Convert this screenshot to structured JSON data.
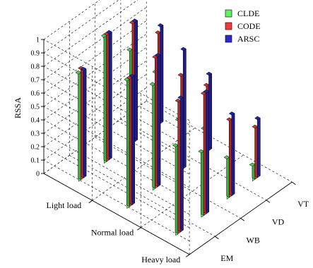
{
  "chart_data": {
    "type": "bar",
    "subtype": "3d-grouped-bar",
    "title": "",
    "zlabel": "RSSA",
    "zlim": [
      0,
      1
    ],
    "zticks": [
      "0",
      "0.1",
      "0.2",
      "0.3",
      "0.4",
      "0.5",
      "0.6",
      "0.7",
      "0.8",
      "0.9",
      "1"
    ],
    "load_categories": [
      "Light load",
      "Normal load",
      "Heavy load"
    ],
    "method_categories": [
      "EM",
      "WB",
      "VD",
      "VT"
    ],
    "legend_position": "top-right",
    "grid": true,
    "series": [
      {
        "name": "CLDE",
        "color": "#5ef25e",
        "values": [
          [
            0.8,
            0.94,
            0.7,
            0.4
          ],
          [
            0.95,
            0.78,
            0.38,
            0.18
          ],
          [
            0.66,
            0.48,
            0.3,
            0.11
          ]
        ]
      },
      {
        "name": "CODE",
        "color": "#f23a3a",
        "values": [
          [
            0.82,
            0.94,
            0.89,
            0.68
          ],
          [
            0.95,
            0.97,
            0.7,
            0.49
          ],
          [
            0.98,
            0.9,
            0.57,
            0.38
          ]
        ]
      },
      {
        "name": "ARSC",
        "color": "#2a2ac8",
        "values": [
          [
            0.8,
            0.94,
            0.89,
            0.72
          ],
          [
            0.95,
            0.97,
            0.88,
            0.56
          ],
          [
            0.99,
            0.9,
            0.6,
            0.43
          ]
        ]
      }
    ]
  }
}
